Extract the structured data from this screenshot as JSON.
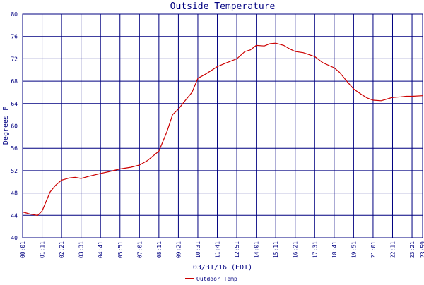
{
  "chart_data": {
    "type": "line",
    "title": "Outside Temperature",
    "ylabel": "Degrees F",
    "xlabel": "03/31/16 (EDT)",
    "ylim": [
      40,
      80
    ],
    "yticks": [
      40,
      44,
      48,
      52,
      56,
      60,
      64,
      68,
      72,
      76,
      80
    ],
    "xlim": [
      "00:01",
      "23:59"
    ],
    "xticks": [
      "00:01",
      "01:11",
      "02:21",
      "03:31",
      "04:41",
      "05:51",
      "07:01",
      "08:11",
      "09:21",
      "10:31",
      "11:41",
      "12:51",
      "14:01",
      "15:11",
      "16:21",
      "17:31",
      "18:41",
      "19:51",
      "21:01",
      "22:11",
      "23:21",
      "23:59"
    ],
    "grid": true,
    "colors": {
      "background": "#ffffff",
      "grid": "#000080",
      "text": "#000080",
      "series": "#cc0000"
    },
    "series": [
      {
        "name": "Outdoor Temp",
        "x": [
          "00:01",
          "00:30",
          "00:55",
          "01:11",
          "01:40",
          "02:00",
          "02:21",
          "02:50",
          "03:10",
          "03:31",
          "04:00",
          "04:41",
          "05:10",
          "05:51",
          "06:30",
          "07:01",
          "07:30",
          "08:11",
          "08:40",
          "09:00",
          "09:21",
          "09:45",
          "10:10",
          "10:31",
          "11:00",
          "11:41",
          "12:10",
          "12:51",
          "13:20",
          "13:40",
          "14:01",
          "14:30",
          "14:50",
          "15:11",
          "15:40",
          "16:00",
          "16:21",
          "16:50",
          "17:31",
          "18:00",
          "18:41",
          "19:00",
          "19:30",
          "19:51",
          "20:20",
          "20:40",
          "21:01",
          "21:30",
          "21:50",
          "22:11",
          "22:40",
          "23:00",
          "23:21",
          "23:59"
        ],
        "y": [
          44.6,
          44.2,
          44.0,
          44.8,
          48.2,
          49.4,
          50.3,
          50.7,
          50.8,
          50.6,
          51.0,
          51.5,
          51.8,
          52.3,
          52.6,
          53.0,
          53.8,
          55.5,
          59.0,
          62.0,
          63.0,
          64.5,
          66.0,
          68.5,
          69.3,
          70.6,
          71.2,
          72.0,
          73.3,
          73.6,
          74.4,
          74.3,
          74.7,
          74.8,
          74.4,
          73.8,
          73.3,
          73.1,
          72.4,
          71.3,
          70.4,
          69.6,
          67.8,
          66.6,
          65.6,
          65.0,
          64.6,
          64.5,
          64.8,
          65.1,
          65.2,
          65.3,
          65.3,
          65.4
        ]
      }
    ]
  }
}
